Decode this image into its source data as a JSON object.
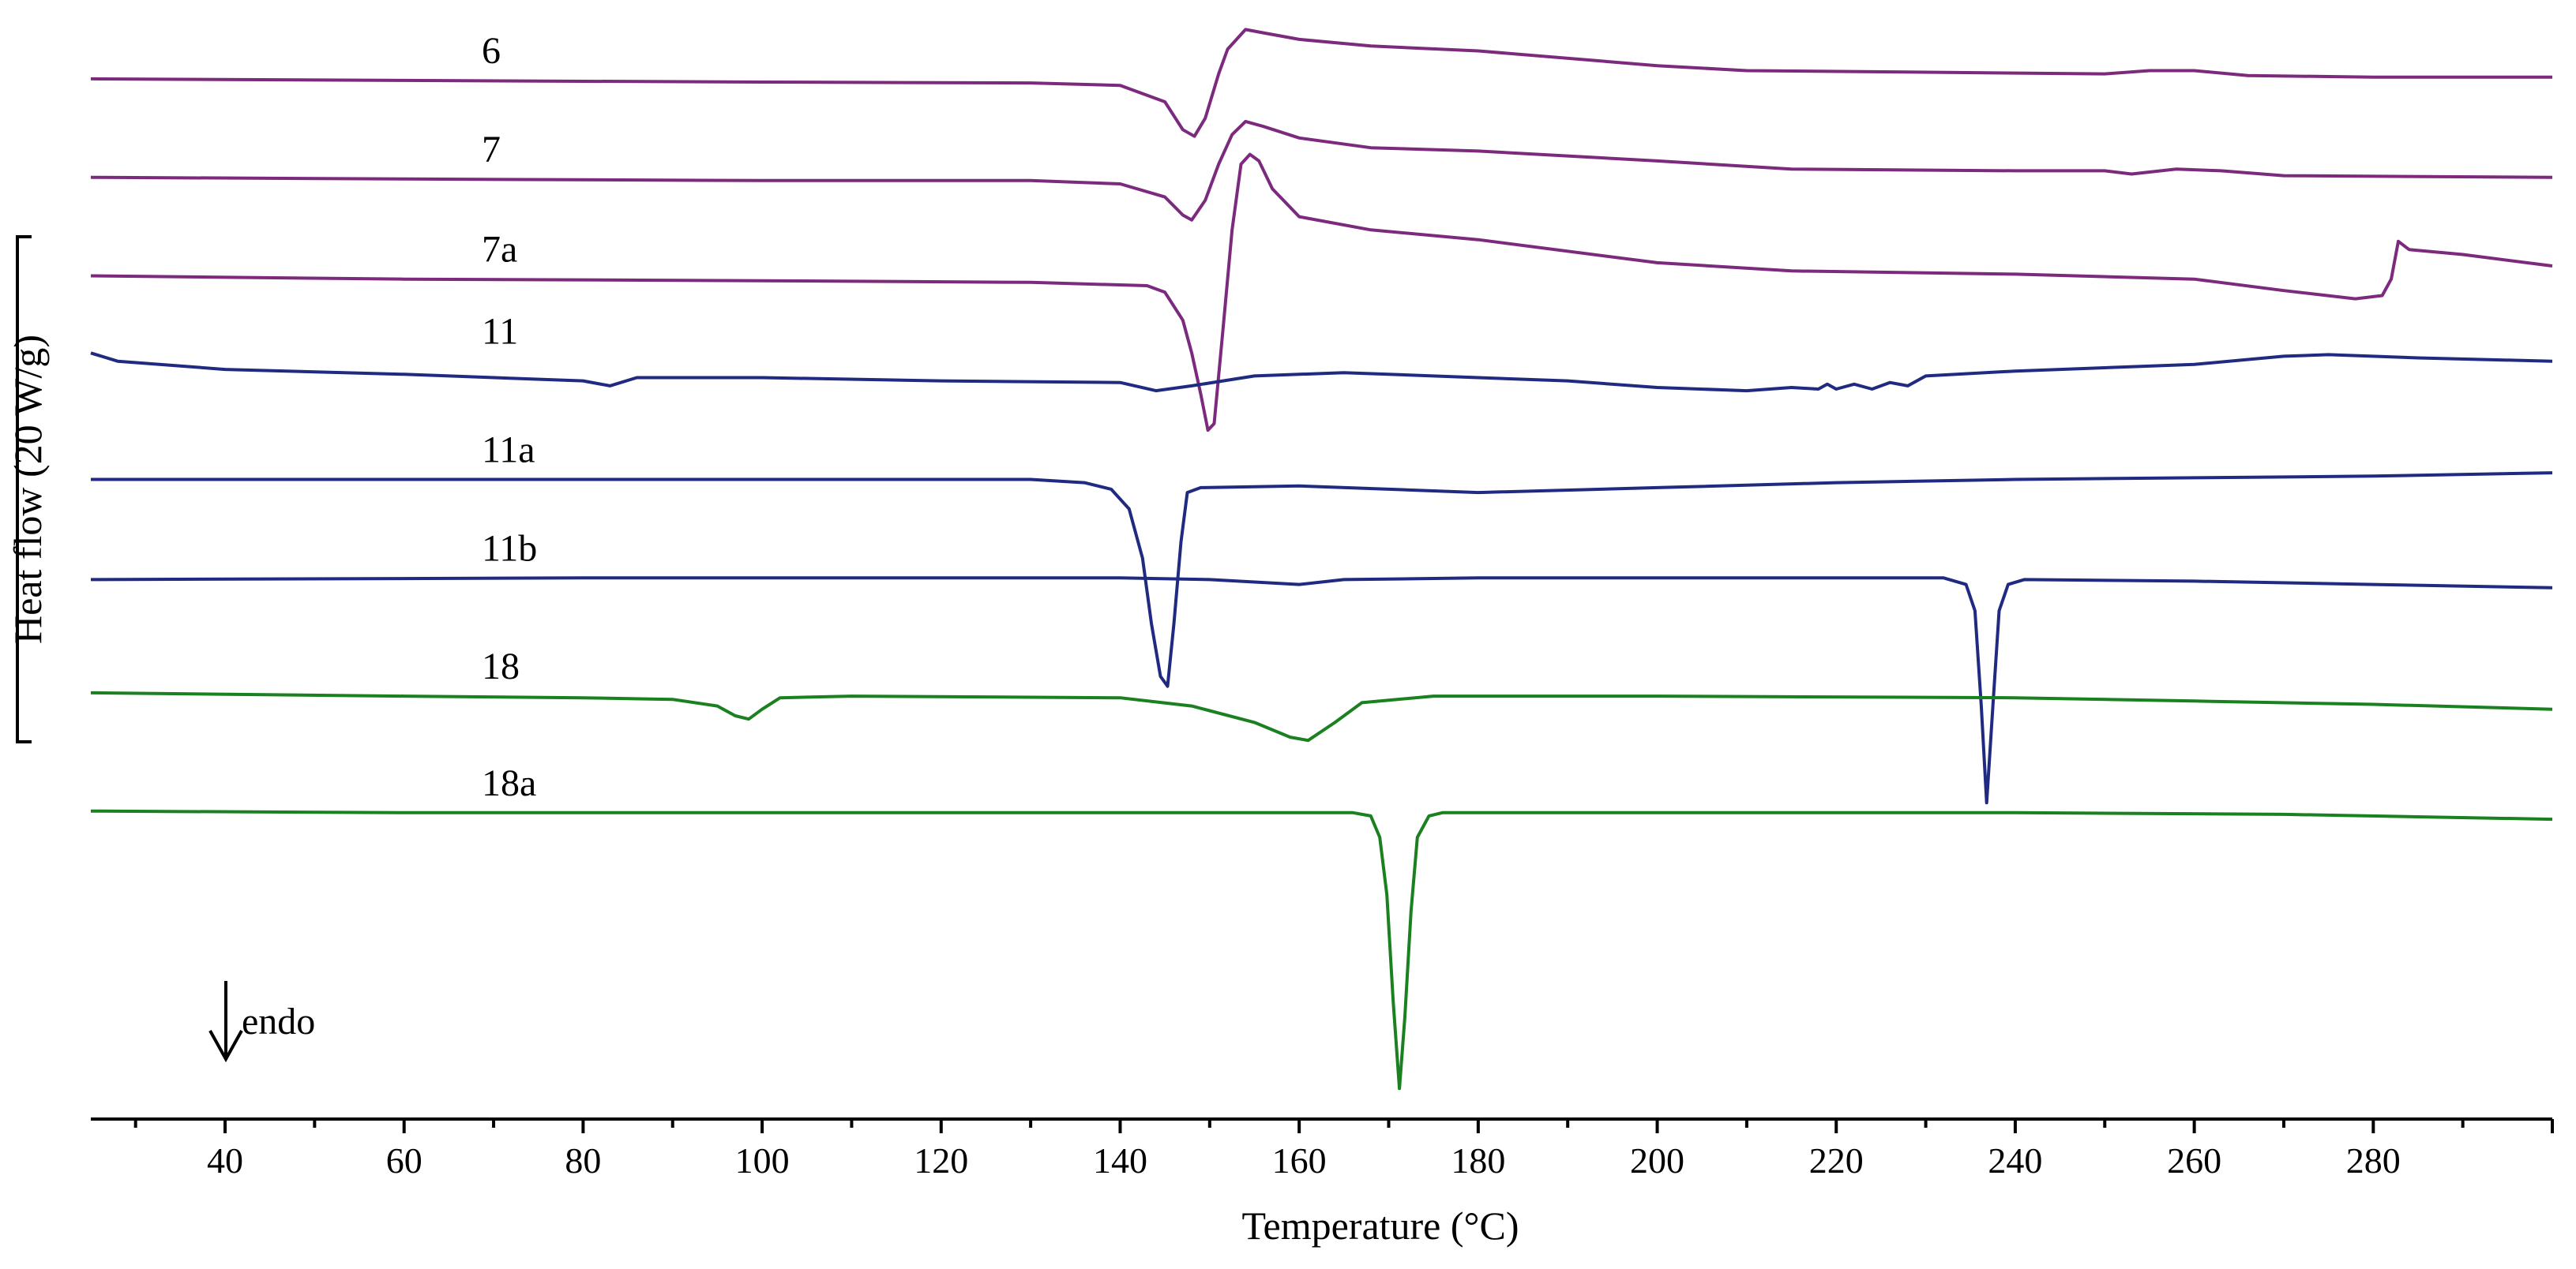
{
  "chart_data": {
    "type": "line",
    "xlabel": "Temperature (°C)",
    "ylabel": "Heat flow (20 W/g)",
    "xlim": [
      25,
      300
    ],
    "x_ticks": [
      40,
      60,
      80,
      100,
      120,
      140,
      160,
      180,
      200,
      220,
      240,
      260,
      280
    ],
    "y_scale_bar": "20 W/g",
    "annotation": "endo",
    "endo_direction": "down",
    "grid": false,
    "legend": "none",
    "series": [
      {
        "name": "6",
        "color": "#7b2a7e",
        "points": [
          [
            25,
            48
          ],
          [
            60,
            49
          ],
          [
            100,
            50
          ],
          [
            130,
            50.5
          ],
          [
            140,
            52
          ],
          [
            145,
            62
          ],
          [
            147,
            79
          ],
          [
            148.3,
            83
          ],
          [
            149.5,
            72
          ],
          [
            151,
            45
          ],
          [
            152,
            30
          ],
          [
            154,
            18
          ],
          [
            156,
            20
          ],
          [
            160,
            24
          ],
          [
            168,
            28
          ],
          [
            180,
            31
          ],
          [
            200,
            40
          ],
          [
            210,
            43
          ],
          [
            230,
            44
          ],
          [
            250,
            45
          ],
          [
            255,
            43
          ],
          [
            260,
            43
          ],
          [
            266,
            46
          ],
          [
            280,
            47
          ],
          [
            300,
            47
          ]
        ]
      },
      {
        "name": "7",
        "color": "#7b2a7e",
        "points": [
          [
            25,
            108
          ],
          [
            60,
            109
          ],
          [
            100,
            110
          ],
          [
            130,
            110
          ],
          [
            140,
            112
          ],
          [
            145,
            120
          ],
          [
            147,
            131
          ],
          [
            148,
            134
          ],
          [
            149.5,
            122
          ],
          [
            151,
            100
          ],
          [
            152.5,
            82
          ],
          [
            154,
            74
          ],
          [
            156,
            77
          ],
          [
            160,
            84
          ],
          [
            168,
            90
          ],
          [
            180,
            92
          ],
          [
            200,
            98
          ],
          [
            215,
            103
          ],
          [
            240,
            104
          ],
          [
            250,
            104
          ],
          [
            253,
            106
          ],
          [
            258,
            103
          ],
          [
            263,
            104
          ],
          [
            270,
            107
          ],
          [
            300,
            108
          ]
        ]
      },
      {
        "name": "7a",
        "color": "#7b2a7e",
        "points": [
          [
            25,
            168
          ],
          [
            60,
            170
          ],
          [
            100,
            171
          ],
          [
            130,
            172
          ],
          [
            143,
            174
          ],
          [
            145,
            178
          ],
          [
            147,
            195
          ],
          [
            148,
            215
          ],
          [
            149,
            240
          ],
          [
            149.8,
            262
          ],
          [
            150.5,
            258
          ],
          [
            151.5,
            200
          ],
          [
            152.5,
            140
          ],
          [
            153.5,
            100
          ],
          [
            154.5,
            94
          ],
          [
            155.5,
            98
          ],
          [
            157,
            115
          ],
          [
            160,
            132
          ],
          [
            168,
            140
          ],
          [
            180,
            146
          ],
          [
            200,
            160
          ],
          [
            215,
            165
          ],
          [
            240,
            167
          ],
          [
            260,
            170
          ],
          [
            270,
            177
          ],
          [
            278,
            182
          ],
          [
            281,
            180
          ],
          [
            282,
            170
          ],
          [
            282.8,
            147
          ],
          [
            284,
            152
          ],
          [
            290,
            155
          ],
          [
            300,
            162
          ]
        ]
      },
      {
        "name": "11",
        "color": "#1f2a80",
        "points": [
          [
            25,
            215
          ],
          [
            28,
            220
          ],
          [
            40,
            225
          ],
          [
            60,
            228
          ],
          [
            80,
            232
          ],
          [
            83,
            235
          ],
          [
            86,
            230
          ],
          [
            100,
            230
          ],
          [
            120,
            232
          ],
          [
            140,
            233
          ],
          [
            144,
            238
          ],
          [
            148,
            235
          ],
          [
            155,
            229
          ],
          [
            165,
            227
          ],
          [
            180,
            230
          ],
          [
            190,
            232
          ],
          [
            200,
            236
          ],
          [
            210,
            238
          ],
          [
            215,
            236
          ],
          [
            218,
            237
          ],
          [
            219,
            234
          ],
          [
            220,
            237
          ],
          [
            222,
            234
          ],
          [
            224,
            237
          ],
          [
            226,
            233
          ],
          [
            228,
            235
          ],
          [
            230,
            229
          ],
          [
            240,
            226
          ],
          [
            260,
            222
          ],
          [
            270,
            217
          ],
          [
            275,
            216
          ],
          [
            285,
            218
          ],
          [
            300,
            220
          ]
        ]
      },
      {
        "name": "11a",
        "color": "#1f2a80",
        "points": [
          [
            25,
            292
          ],
          [
            60,
            292
          ],
          [
            100,
            292
          ],
          [
            130,
            292
          ],
          [
            136,
            294
          ],
          [
            139,
            298
          ],
          [
            141,
            310
          ],
          [
            142.5,
            340
          ],
          [
            143.5,
            380
          ],
          [
            144.5,
            412
          ],
          [
            145.3,
            418
          ],
          [
            146,
            380
          ],
          [
            146.8,
            330
          ],
          [
            147.5,
            300
          ],
          [
            149,
            297
          ],
          [
            160,
            296
          ],
          [
            170,
            298
          ],
          [
            180,
            300
          ],
          [
            200,
            297
          ],
          [
            220,
            294
          ],
          [
            240,
            292
          ],
          [
            260,
            291
          ],
          [
            280,
            290
          ],
          [
            300,
            288
          ]
        ]
      },
      {
        "name": "11b",
        "color": "#1f2a80",
        "points": [
          [
            25,
            353
          ],
          [
            80,
            352
          ],
          [
            120,
            352
          ],
          [
            140,
            352
          ],
          [
            150,
            353
          ],
          [
            160,
            356
          ],
          [
            165,
            353
          ],
          [
            180,
            352
          ],
          [
            200,
            352
          ],
          [
            220,
            352
          ],
          [
            232,
            352
          ],
          [
            234.5,
            356
          ],
          [
            235.5,
            372
          ],
          [
            236.2,
            430
          ],
          [
            236.8,
            489
          ],
          [
            237.5,
            430
          ],
          [
            238.2,
            372
          ],
          [
            239.2,
            356
          ],
          [
            241,
            353
          ],
          [
            260,
            354
          ],
          [
            280,
            356
          ],
          [
            300,
            358
          ]
        ]
      },
      {
        "name": "18",
        "color": "#1a8020",
        "points": [
          [
            25,
            422
          ],
          [
            60,
            424
          ],
          [
            80,
            425
          ],
          [
            90,
            426
          ],
          [
            95,
            430
          ],
          [
            97,
            436
          ],
          [
            98.5,
            438
          ],
          [
            100,
            432
          ],
          [
            102,
            425
          ],
          [
            110,
            424
          ],
          [
            140,
            425
          ],
          [
            148,
            430
          ],
          [
            155,
            440
          ],
          [
            159,
            449
          ],
          [
            161,
            451
          ],
          [
            164,
            440
          ],
          [
            167,
            428
          ],
          [
            175,
            424
          ],
          [
            200,
            424
          ],
          [
            240,
            425
          ],
          [
            260,
            427
          ],
          [
            280,
            429
          ],
          [
            300,
            432
          ]
        ]
      },
      {
        "name": "18a",
        "color": "#1a8020",
        "points": [
          [
            25,
            494
          ],
          [
            60,
            495
          ],
          [
            100,
            495
          ],
          [
            140,
            495
          ],
          [
            160,
            495
          ],
          [
            166,
            495
          ],
          [
            168,
            497
          ],
          [
            169,
            510
          ],
          [
            169.8,
            545
          ],
          [
            170.5,
            610
          ],
          [
            171.2,
            663
          ],
          [
            171.8,
            620
          ],
          [
            172.5,
            555
          ],
          [
            173.2,
            510
          ],
          [
            174.5,
            497
          ],
          [
            176,
            495
          ],
          [
            200,
            495
          ],
          [
            240,
            495
          ],
          [
            270,
            496
          ],
          [
            300,
            499
          ]
        ]
      }
    ],
    "curve_labels": [
      "6",
      "7",
      "7a",
      "11",
      "11a",
      "11b",
      "18",
      "18a"
    ]
  }
}
